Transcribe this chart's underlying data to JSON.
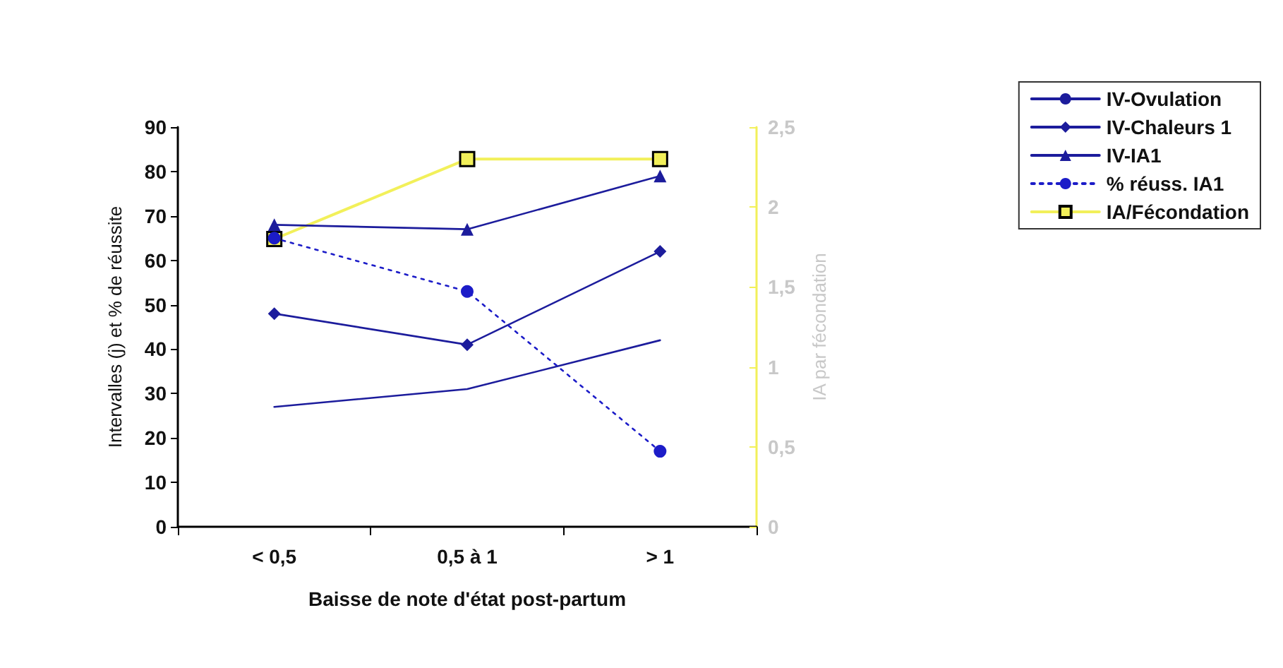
{
  "chart_data": {
    "type": "line",
    "categories": [
      "< 0,5",
      "0,5 à 1",
      "> 1"
    ],
    "xlabel": "Baisse de note d'état post-partum",
    "ylabel": "Intervalles (j) et % de réussite",
    "y2label": "IA par fécondation",
    "ylim": [
      0,
      90
    ],
    "yticks": [
      0,
      10,
      20,
      30,
      40,
      50,
      60,
      70,
      80,
      90
    ],
    "y2lim": [
      0,
      2.5
    ],
    "y2ticks": [
      0,
      {
        "value": 0.5,
        "label": "0,5"
      },
      1,
      {
        "value": 1.5,
        "label": "1,5"
      },
      2,
      {
        "value": 2.5,
        "label": "2,5"
      }
    ],
    "grid": false,
    "legend": "right",
    "series": [
      {
        "name": "IV-Ovulation",
        "color": "#1c1c9c",
        "values": [
          27,
          31,
          42
        ],
        "marker": "none",
        "line_style": "solid"
      },
      {
        "name": "IV-Chaleurs 1",
        "color": "#1c1c9c",
        "values": [
          48,
          41,
          62
        ],
        "marker": "diamond",
        "line_style": "solid"
      },
      {
        "name": "IV-IA1",
        "color": "#1c1c9c",
        "values": [
          68,
          67,
          79
        ],
        "marker": "triangle",
        "line_style": "solid"
      },
      {
        "name": "% réuss. IA1",
        "color": "#1c1cc8",
        "values": [
          65,
          53,
          17
        ],
        "marker": "circle",
        "line_style": "dotted"
      },
      {
        "name": "IA/Fécondation",
        "color": "#f2f05a",
        "values": [
          1.8,
          2.3,
          2.3
        ],
        "marker": "square",
        "line_style": "solid",
        "axis": "y2"
      }
    ]
  }
}
